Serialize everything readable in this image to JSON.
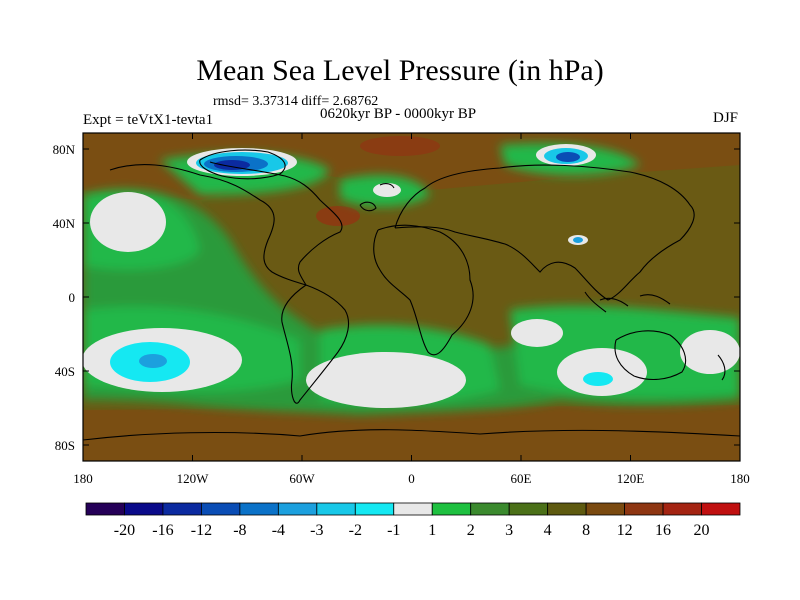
{
  "title": "Mean Sea Level Pressure (in hPa)",
  "stats": "rmsd= 3.37314 diff= 2.68762",
  "subtitle": "0620kyr BP - 0000kyr BP",
  "experiment": "Expt = teVtX1-tevta1",
  "season": "DJF",
  "lat_ticks": [
    "80N",
    "40N",
    "0",
    "40S",
    "80S"
  ],
  "lon_ticks": [
    "180",
    "120W",
    "60W",
    "0",
    "60E",
    "120E",
    "180"
  ],
  "colorbar": {
    "colors": [
      "#250058",
      "#0a0a8a",
      "#0b2aa0",
      "#0a4db5",
      "#0b72c8",
      "#1ca0de",
      "#18c8e8",
      "#15e8f2",
      "#e8e8e8",
      "#1ec040",
      "#3b8a2e",
      "#4b7018",
      "#5e5a10",
      "#7a4a10",
      "#8e3612",
      "#a42412",
      "#c01010"
    ],
    "labels": [
      "-20",
      "-16",
      "-12",
      "-8",
      "-4",
      "-3",
      "-2",
      "-1",
      "1",
      "2",
      "3",
      "4",
      "8",
      "12",
      "16",
      "20"
    ]
  }
}
